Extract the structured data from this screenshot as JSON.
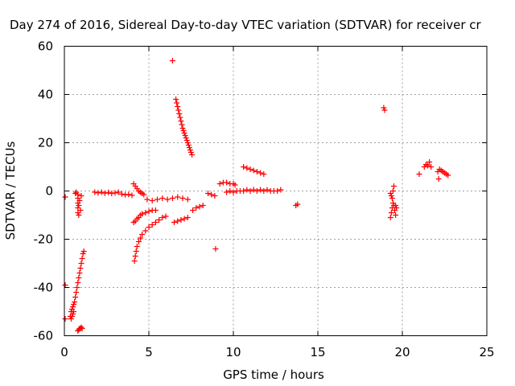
{
  "chart_data": {
    "type": "scatter",
    "title": "Day 274 of 2016, Sidereal Day-to-day VTEC variation (SDTVAR) for receiver cr",
    "xlabel": "GPS time / hours",
    "ylabel": "SDTVAR / TECUs",
    "xlim": [
      0,
      25
    ],
    "ylim": [
      -60,
      60
    ],
    "xticks": [
      0,
      5,
      10,
      15,
      20,
      25
    ],
    "yticks": [
      -60,
      -40,
      -20,
      0,
      20,
      40,
      60
    ],
    "grid": true,
    "marker": "+",
    "color": "#ff0000",
    "series": [
      {
        "points": [
          [
            0.05,
            -2.5
          ],
          [
            0.05,
            -39
          ],
          [
            0.05,
            -53
          ],
          [
            0.35,
            -52
          ],
          [
            0.4,
            -50
          ],
          [
            0.45,
            -49
          ],
          [
            0.5,
            -48
          ],
          [
            0.55,
            -47
          ],
          [
            0.6,
            -46
          ],
          [
            0.65,
            -44
          ],
          [
            0.7,
            -42
          ],
          [
            0.75,
            -40
          ],
          [
            0.8,
            -38
          ],
          [
            0.85,
            -36
          ],
          [
            0.9,
            -34
          ],
          [
            0.95,
            -32
          ],
          [
            1.0,
            -30
          ],
          [
            1.05,
            -28
          ],
          [
            1.1,
            -26
          ],
          [
            1.15,
            -25
          ],
          [
            0.4,
            -53
          ],
          [
            0.45,
            -52
          ],
          [
            0.5,
            -51
          ],
          [
            0.55,
            -50
          ],
          [
            0.65,
            -1
          ],
          [
            0.7,
            -0.5
          ],
          [
            0.8,
            -1.5
          ],
          [
            0.8,
            -3
          ],
          [
            0.8,
            -5
          ],
          [
            0.8,
            -7
          ],
          [
            0.8,
            -9
          ],
          [
            0.85,
            -10
          ],
          [
            0.85,
            -6
          ],
          [
            0.9,
            -4
          ],
          [
            0.95,
            -8
          ],
          [
            1.0,
            -2
          ],
          [
            0.8,
            -58
          ],
          [
            0.85,
            -57.5
          ],
          [
            0.9,
            -57
          ],
          [
            0.95,
            -57
          ],
          [
            1.0,
            -56.5
          ],
          [
            1.05,
            -57
          ],
          [
            1.8,
            -0.5
          ],
          [
            2.0,
            -0.8
          ],
          [
            2.2,
            -0.5
          ],
          [
            2.4,
            -0.9
          ],
          [
            2.6,
            -0.6
          ],
          [
            2.8,
            -1.0
          ],
          [
            3.0,
            -0.8
          ],
          [
            3.2,
            -0.5
          ],
          [
            3.4,
            -1.3
          ],
          [
            3.6,
            -1.6
          ],
          [
            3.8,
            -1.4
          ],
          [
            4.0,
            -1.8
          ],
          [
            4.1,
            3
          ],
          [
            4.2,
            2
          ],
          [
            4.3,
            1
          ],
          [
            4.4,
            0
          ],
          [
            4.5,
            -0.5
          ],
          [
            4.6,
            -1
          ],
          [
            4.7,
            -1.5
          ],
          [
            4.15,
            -29
          ],
          [
            4.2,
            -27
          ],
          [
            4.25,
            -25
          ],
          [
            4.3,
            -23
          ],
          [
            4.4,
            -21
          ],
          [
            4.5,
            -19.5
          ],
          [
            4.6,
            -18
          ],
          [
            4.8,
            -16.5
          ],
          [
            5.0,
            -15
          ],
          [
            5.2,
            -14
          ],
          [
            5.4,
            -13
          ],
          [
            5.6,
            -12
          ],
          [
            5.8,
            -11
          ],
          [
            6.0,
            -10.5
          ],
          [
            4.1,
            -13
          ],
          [
            4.2,
            -12.5
          ],
          [
            4.3,
            -11.5
          ],
          [
            4.4,
            -11
          ],
          [
            4.5,
            -10
          ],
          [
            4.6,
            -9.5
          ],
          [
            4.8,
            -9
          ],
          [
            5.0,
            -8.5
          ],
          [
            5.2,
            -8
          ],
          [
            5.4,
            -8
          ],
          [
            4.9,
            -3.5
          ],
          [
            5.2,
            -4
          ],
          [
            5.5,
            -3.5
          ],
          [
            5.8,
            -3
          ],
          [
            6.1,
            -3.5
          ],
          [
            6.4,
            -3
          ],
          [
            6.7,
            -2.5
          ],
          [
            7.0,
            -3
          ],
          [
            7.3,
            -3.5
          ],
          [
            6.4,
            54
          ],
          [
            6.6,
            38
          ],
          [
            6.65,
            36.5
          ],
          [
            6.7,
            35
          ],
          [
            6.75,
            33.5
          ],
          [
            6.8,
            32
          ],
          [
            6.85,
            30.5
          ],
          [
            6.9,
            29
          ],
          [
            6.95,
            27.5
          ],
          [
            7.0,
            26
          ],
          [
            7.05,
            25
          ],
          [
            7.1,
            24
          ],
          [
            7.15,
            23
          ],
          [
            7.2,
            22
          ],
          [
            7.25,
            21
          ],
          [
            7.3,
            20
          ],
          [
            7.35,
            19
          ],
          [
            7.4,
            18
          ],
          [
            7.45,
            17
          ],
          [
            7.5,
            16
          ],
          [
            7.55,
            15
          ],
          [
            6.5,
            -13
          ],
          [
            6.7,
            -12.5
          ],
          [
            6.9,
            -12
          ],
          [
            7.1,
            -11.5
          ],
          [
            7.3,
            -11
          ],
          [
            7.6,
            -8
          ],
          [
            7.8,
            -7
          ],
          [
            8.0,
            -6.5
          ],
          [
            8.2,
            -6
          ],
          [
            8.5,
            -1
          ],
          [
            8.7,
            -1.5
          ],
          [
            8.9,
            -2
          ],
          [
            8.95,
            -24
          ],
          [
            9.2,
            3
          ],
          [
            9.4,
            3.5
          ],
          [
            9.6,
            3.5
          ],
          [
            9.8,
            3
          ],
          [
            10.0,
            3
          ],
          [
            10.1,
            2.5
          ],
          [
            9.6,
            -0.5
          ],
          [
            9.8,
            0
          ],
          [
            10.0,
            -0.5
          ],
          [
            10.2,
            0
          ],
          [
            10.4,
            0
          ],
          [
            10.6,
            0
          ],
          [
            10.8,
            0.5
          ],
          [
            11.0,
            0
          ],
          [
            11.2,
            0.5
          ],
          [
            11.4,
            0
          ],
          [
            11.6,
            0.5
          ],
          [
            11.8,
            0
          ],
          [
            12.0,
            0.5
          ],
          [
            12.2,
            0
          ],
          [
            12.4,
            0
          ],
          [
            12.6,
            0
          ],
          [
            12.8,
            0.5
          ],
          [
            10.6,
            10
          ],
          [
            10.8,
            9.5
          ],
          [
            11.0,
            9
          ],
          [
            11.2,
            8.5
          ],
          [
            11.4,
            8
          ],
          [
            11.6,
            7.5
          ],
          [
            11.8,
            7
          ],
          [
            13.7,
            -6
          ],
          [
            13.8,
            -5.5
          ],
          [
            18.9,
            34.5
          ],
          [
            18.95,
            33.5
          ],
          [
            19.3,
            -1
          ],
          [
            19.35,
            -2
          ],
          [
            19.4,
            -3
          ],
          [
            19.45,
            0
          ],
          [
            19.45,
            -5
          ],
          [
            19.5,
            2
          ],
          [
            19.4,
            -7
          ],
          [
            19.35,
            -9
          ],
          [
            19.3,
            -11
          ],
          [
            19.5,
            -6
          ],
          [
            19.55,
            -8
          ],
          [
            19.6,
            -10
          ],
          [
            19.6,
            -6
          ],
          [
            19.65,
            -7
          ],
          [
            21.0,
            7
          ],
          [
            21.3,
            10
          ],
          [
            21.4,
            11
          ],
          [
            21.5,
            10.5
          ],
          [
            21.6,
            12
          ],
          [
            21.7,
            10
          ],
          [
            22.1,
            8
          ],
          [
            22.15,
            5
          ],
          [
            22.2,
            9
          ],
          [
            22.3,
            8.5
          ],
          [
            22.4,
            8
          ],
          [
            22.5,
            7.5
          ],
          [
            22.6,
            7
          ],
          [
            22.7,
            6.5
          ]
        ]
      }
    ]
  }
}
